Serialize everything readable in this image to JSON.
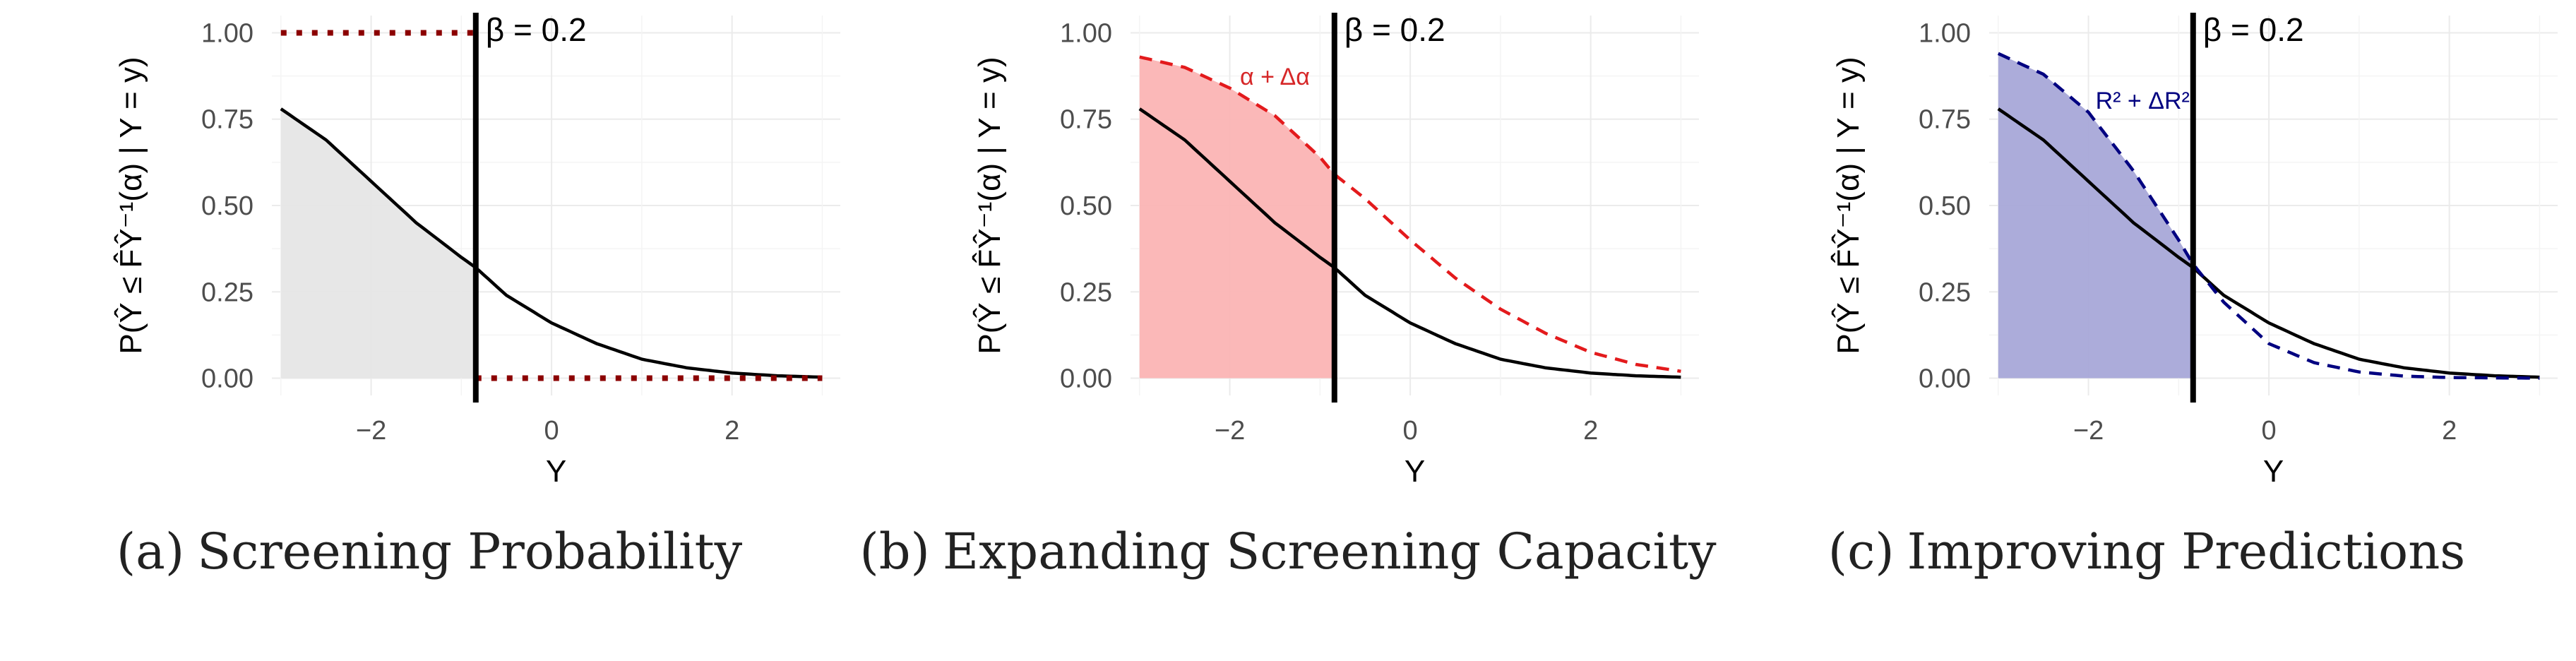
{
  "captions": [
    {
      "tag": "(a)",
      "text": "Screening Probability"
    },
    {
      "tag": "(b)",
      "text": "Expanding Screening Capacity"
    },
    {
      "tag": "(c)",
      "text": "Improving Predictions"
    }
  ],
  "chart_data": [
    {
      "type": "line",
      "xlabel": "Y",
      "ylabel": "P(Ŷ ≤ F̂Ŷ⁻¹(α) | Y = y)",
      "xlim": [
        -3.1,
        3.2
      ],
      "ylim": [
        -0.05,
        1.05
      ],
      "x_ticks": [
        -2,
        0,
        2
      ],
      "x_tick_labels": [
        "−2",
        "0",
        "2"
      ],
      "y_ticks": [
        0,
        0.25,
        0.5,
        0.75,
        1
      ],
      "y_tick_labels": [
        "0.00",
        "0.25",
        "0.50",
        "0.75",
        "1.00"
      ],
      "grid": true,
      "vline": {
        "x": -0.84,
        "label": "β = 0.2"
      },
      "series": [
        {
          "style": "solid",
          "color": "#000000",
          "x": [
            -3,
            -2.5,
            -2,
            -1.5,
            -1,
            -0.84,
            -0.5,
            0,
            0.5,
            1,
            1.5,
            2,
            2.5,
            3
          ],
          "y": [
            0.78,
            0.69,
            0.57,
            0.45,
            0.35,
            0.32,
            0.24,
            0.16,
            0.1,
            0.055,
            0.03,
            0.015,
            0.007,
            0.003
          ]
        },
        {
          "style": "dotted",
          "color": "#8b0000",
          "x": [
            -3,
            -0.84,
            -0.84,
            3
          ],
          "y": [
            1,
            1,
            0,
            0
          ]
        }
      ],
      "shade": {
        "under": "solid",
        "x_from": -3,
        "x_to": -0.84,
        "color": "#e6e6e6"
      }
    },
    {
      "type": "line",
      "xlabel": "Y",
      "ylabel": "P(Ŷ ≤ F̂Ŷ⁻¹(α) | Y = y)",
      "xlim": [
        -3.1,
        3.2
      ],
      "ylim": [
        -0.05,
        1.05
      ],
      "x_ticks": [
        -2,
        0,
        2
      ],
      "x_tick_labels": [
        "−2",
        "0",
        "2"
      ],
      "y_ticks": [
        0,
        0.25,
        0.5,
        0.75,
        1
      ],
      "y_tick_labels": [
        "0.00",
        "0.25",
        "0.50",
        "0.75",
        "1.00"
      ],
      "grid": true,
      "vline": {
        "x": -0.84,
        "label": "β = 0.2"
      },
      "annotation": {
        "text": "α + Δα",
        "x": -1.5,
        "y": 0.85,
        "color": "#d62728"
      },
      "series": [
        {
          "style": "solid",
          "color": "#000000",
          "x": [
            -3,
            -2.5,
            -2,
            -1.5,
            -1,
            -0.84,
            -0.5,
            0,
            0.5,
            1,
            1.5,
            2,
            2.5,
            3
          ],
          "y": [
            0.78,
            0.69,
            0.57,
            0.45,
            0.35,
            0.32,
            0.24,
            0.16,
            0.1,
            0.055,
            0.03,
            0.015,
            0.007,
            0.003
          ]
        },
        {
          "style": "dashed",
          "color": "#e31a1c",
          "x": [
            -3,
            -2.5,
            -2,
            -1.5,
            -1,
            -0.84,
            -0.5,
            0,
            0.5,
            1,
            1.5,
            2,
            2.5,
            3
          ],
          "y": [
            0.93,
            0.9,
            0.84,
            0.76,
            0.64,
            0.59,
            0.52,
            0.4,
            0.29,
            0.2,
            0.13,
            0.075,
            0.04,
            0.02
          ]
        }
      ],
      "shade": {
        "under": "dashed",
        "x_from": -3,
        "x_to": -0.84,
        "color": "#fbb4b4"
      }
    },
    {
      "type": "line",
      "xlabel": "Y",
      "ylabel": "P(Ŷ ≤ F̂Ŷ⁻¹(α) | Y = y)",
      "xlim": [
        -3.1,
        3.2
      ],
      "ylim": [
        -0.05,
        1.05
      ],
      "x_ticks": [
        -2,
        0,
        2
      ],
      "x_tick_labels": [
        "−2",
        "0",
        "2"
      ],
      "y_ticks": [
        0,
        0.25,
        0.5,
        0.75,
        1
      ],
      "y_tick_labels": [
        "0.00",
        "0.25",
        "0.50",
        "0.75",
        "1.00"
      ],
      "grid": true,
      "vline": {
        "x": -0.84,
        "label": "β = 0.2"
      },
      "annotation": {
        "text": "R² + ΔR²",
        "x": -1.4,
        "y": 0.78,
        "color": "#000080"
      },
      "series": [
        {
          "style": "solid",
          "color": "#000000",
          "x": [
            -3,
            -2.5,
            -2,
            -1.5,
            -1,
            -0.84,
            -0.5,
            0,
            0.5,
            1,
            1.5,
            2,
            2.5,
            3
          ],
          "y": [
            0.78,
            0.69,
            0.57,
            0.45,
            0.35,
            0.32,
            0.24,
            0.16,
            0.1,
            0.055,
            0.03,
            0.015,
            0.007,
            0.003
          ]
        },
        {
          "style": "dashed",
          "color": "#000080",
          "x": [
            -3,
            -2.5,
            -2,
            -1.5,
            -1,
            -0.84,
            -0.5,
            0,
            0.5,
            1,
            1.5,
            2,
            2.5,
            3
          ],
          "y": [
            0.94,
            0.88,
            0.77,
            0.6,
            0.4,
            0.33,
            0.22,
            0.1,
            0.045,
            0.018,
            0.006,
            0.002,
            0.001,
            0
          ]
        }
      ],
      "shade": {
        "under": "dashed",
        "x_from": -3,
        "x_to": -0.84,
        "color": "#a8a8d8"
      }
    }
  ]
}
